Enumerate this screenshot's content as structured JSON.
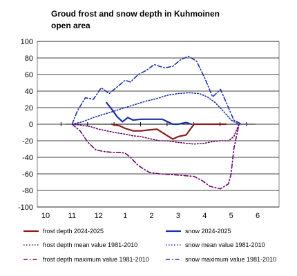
{
  "chart_data": {
    "type": "line",
    "title_lines": [
      "Groud frost and snow depth in Kuhmoinen",
      "open area"
    ],
    "xlabel": "",
    "ylabel": "",
    "x_tick_labels": [
      "10",
      "11",
      "12",
      "1",
      "2",
      "3",
      "4",
      "5",
      "6"
    ],
    "x_tick_month_index": [
      0,
      1,
      2,
      3,
      4,
      5,
      6,
      7,
      8
    ],
    "ylim": [
      -100,
      100
    ],
    "y_ticks": [
      -100,
      -80,
      -60,
      -40,
      -20,
      0,
      20,
      40,
      60,
      80,
      100
    ],
    "grid": "horizontal",
    "legend_position": "bottom",
    "series": [
      {
        "name": "frost depth 2024-2025",
        "color": "#8b1a1a",
        "dash": "solid",
        "x": [
          2.5,
          2.8,
          3.0,
          3.3,
          3.6,
          3.9,
          4.2,
          4.5,
          4.8,
          5.0,
          5.3,
          5.6,
          6.0,
          6.4,
          6.8
        ],
        "y": [
          0,
          -2,
          -5,
          -8,
          -8,
          -7,
          -6,
          -12,
          -18,
          -15,
          -13,
          0,
          0,
          0,
          0
        ]
      },
      {
        "name": "snow 2024-2025",
        "color": "#1a2fa8",
        "dash": "solid",
        "x": [
          2.3,
          2.5,
          2.7,
          2.9,
          3.1,
          3.3,
          3.6,
          4.0,
          4.4,
          4.8,
          5.0,
          5.3,
          5.5
        ],
        "y": [
          26,
          18,
          9,
          3,
          8,
          5,
          6,
          6,
          6,
          0,
          0,
          2,
          0
        ]
      },
      {
        "name": "frost depth mean value 1981-2010",
        "color": "#6a006a",
        "dash": "dot",
        "x": [
          1.0,
          1.3,
          1.7,
          2.0,
          2.3,
          2.6,
          3.0,
          3.3,
          3.6,
          4.0,
          4.3,
          4.6,
          5.0,
          5.3,
          5.6,
          6.0,
          6.3,
          6.6,
          6.9,
          7.1,
          7.3
        ],
        "y": [
          0,
          -1,
          -3,
          -6,
          -8,
          -10,
          -12,
          -14,
          -15,
          -18,
          -20,
          -20,
          -22,
          -23,
          -24,
          -23,
          -21,
          -20,
          -20,
          -15,
          0
        ]
      },
      {
        "name": "snow mean value 1981-2010",
        "color": "#1a2fa8",
        "dash": "dot",
        "x": [
          1.0,
          1.4,
          1.8,
          2.2,
          2.6,
          3.0,
          3.4,
          3.8,
          4.2,
          4.6,
          5.0,
          5.4,
          5.8,
          6.1,
          6.4,
          6.7,
          7.0,
          7.3,
          7.5
        ],
        "y": [
          0,
          3,
          8,
          12,
          16,
          20,
          24,
          28,
          31,
          35,
          37,
          38,
          37,
          33,
          26,
          16,
          5,
          0,
          0
        ]
      },
      {
        "name": "frost depth maximum value 1981-2010",
        "color": "#6a006a",
        "dash": "dashdot",
        "x": [
          1.0,
          1.3,
          1.6,
          1.9,
          2.2,
          2.5,
          2.8,
          3.0,
          3.2,
          3.5,
          3.9,
          4.3,
          4.8,
          5.2,
          5.6,
          5.9,
          6.2,
          6.6,
          6.9,
          7.0,
          7.1,
          7.3
        ],
        "y": [
          0,
          -8,
          -22,
          -31,
          -33,
          -34,
          -34,
          -35,
          -40,
          -50,
          -58,
          -60,
          -61,
          -62,
          -63,
          -68,
          -75,
          -78,
          -72,
          -60,
          -30,
          0
        ]
      },
      {
        "name": "snow maximum value 1981-2010",
        "color": "#1a2fa8",
        "dash": "dashdot",
        "x": [
          1.0,
          1.2,
          1.5,
          1.8,
          2.1,
          2.4,
          2.7,
          3.0,
          3.2,
          3.5,
          3.8,
          4.1,
          4.5,
          4.8,
          5.1,
          5.4,
          5.7,
          6.0,
          6.3,
          6.6,
          6.9,
          7.1,
          7.4
        ],
        "y": [
          0,
          16,
          32,
          30,
          44,
          37,
          45,
          53,
          51,
          60,
          65,
          72,
          68,
          70,
          78,
          82,
          76,
          56,
          33,
          42,
          20,
          5,
          0
        ]
      }
    ]
  }
}
